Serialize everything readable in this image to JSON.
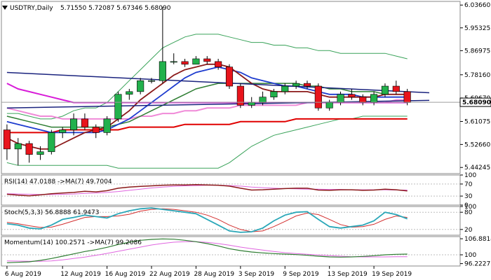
{
  "header": {
    "symbol": "USDTRY,Daily",
    "ohlc": "5.71550 5.72087 5.67346 5.68090"
  },
  "colors": {
    "bull": "#22b14c",
    "bear": "#e8141c",
    "bb_outer": "#3aa35a",
    "ma_fast": "#8b1a1a",
    "ma_mid": "#1e3ccf",
    "ma_slow_green": "#2e7d32",
    "ma_magenta": "#d81bd8",
    "ma_pink": "#f08ad8",
    "ma_red200": "#e00000",
    "trendline": "#1a237e",
    "grid": "#bdbdbd",
    "rsi": "#8b1a1a",
    "stoch_k": "#2aa7b8",
    "stoch_d": "#d32f2f",
    "momentum": "#2e7d32",
    "momentum_ma": "#e066e0",
    "price_box_bg": "#ffffff"
  },
  "icons": {
    "collapse": "triangle-down-icon"
  },
  "chart_data": [
    {
      "type": "candlestick",
      "title": "USDTRY,Daily",
      "ylim": [
        5.42,
        6.05
      ],
      "yticks": [
        "6.03660",
        "5.95325",
        "5.86975",
        "5.78160",
        "5.69670",
        "5.61075",
        "5.52660",
        "5.44245"
      ],
      "ytick_values": [
        6.0366,
        5.95325,
        5.86975,
        5.7816,
        5.6967,
        5.61075,
        5.5266,
        5.44245
      ],
      "current_price_label": "5.68090",
      "current_price": 5.6809,
      "xtick_labels": [
        "6 Aug 2019",
        "12 Aug 2019",
        "16 Aug 2019",
        "22 Aug 2019",
        "28 Aug 2019",
        "3 Sep 2019",
        "9 Sep 2019",
        "13 Sep 2019",
        "19 Sep 2019"
      ],
      "xtick_index": [
        0,
        5,
        9,
        13,
        17,
        21,
        25,
        29,
        33
      ],
      "candles": [
        {
          "o": 5.58,
          "h": 5.6,
          "l": 5.47,
          "c": 5.51
        },
        {
          "o": 5.51,
          "h": 5.55,
          "l": 5.45,
          "c": 5.53
        },
        {
          "o": 5.53,
          "h": 5.54,
          "l": 5.46,
          "c": 5.49
        },
        {
          "o": 5.49,
          "h": 5.52,
          "l": 5.47,
          "c": 5.5
        },
        {
          "o": 5.5,
          "h": 5.58,
          "l": 5.49,
          "c": 5.57
        },
        {
          "o": 5.57,
          "h": 5.59,
          "l": 5.55,
          "c": 5.58
        },
        {
          "o": 5.58,
          "h": 5.64,
          "l": 5.56,
          "c": 5.62
        },
        {
          "o": 5.62,
          "h": 5.64,
          "l": 5.58,
          "c": 5.59
        },
        {
          "o": 5.59,
          "h": 5.6,
          "l": 5.55,
          "c": 5.57
        },
        {
          "o": 5.57,
          "h": 5.63,
          "l": 5.56,
          "c": 5.62
        },
        {
          "o": 5.62,
          "h": 5.72,
          "l": 5.61,
          "c": 5.71
        },
        {
          "o": 5.71,
          "h": 5.73,
          "l": 5.69,
          "c": 5.72
        },
        {
          "o": 5.72,
          "h": 5.77,
          "l": 5.71,
          "c": 5.76
        },
        {
          "o": 5.76,
          "h": 5.77,
          "l": 5.75,
          "c": 5.76
        },
        {
          "o": 5.76,
          "h": 6.03,
          "l": 5.75,
          "c": 5.83
        },
        {
          "o": 5.83,
          "h": 5.86,
          "l": 5.82,
          "c": 5.83
        },
        {
          "o": 5.83,
          "h": 5.84,
          "l": 5.81,
          "c": 5.82
        },
        {
          "o": 5.82,
          "h": 5.85,
          "l": 5.82,
          "c": 5.84
        },
        {
          "o": 5.84,
          "h": 5.85,
          "l": 5.82,
          "c": 5.83
        },
        {
          "o": 5.83,
          "h": 5.84,
          "l": 5.8,
          "c": 5.81
        },
        {
          "o": 5.81,
          "h": 5.82,
          "l": 5.73,
          "c": 5.74
        },
        {
          "o": 5.74,
          "h": 5.75,
          "l": 5.66,
          "c": 5.67
        },
        {
          "o": 5.67,
          "h": 5.7,
          "l": 5.66,
          "c": 5.68
        },
        {
          "o": 5.68,
          "h": 5.72,
          "l": 5.67,
          "c": 5.7
        },
        {
          "o": 5.7,
          "h": 5.73,
          "l": 5.69,
          "c": 5.72
        },
        {
          "o": 5.72,
          "h": 5.75,
          "l": 5.71,
          "c": 5.74
        },
        {
          "o": 5.74,
          "h": 5.76,
          "l": 5.73,
          "c": 5.75
        },
        {
          "o": 5.75,
          "h": 5.76,
          "l": 5.73,
          "c": 5.74
        },
        {
          "o": 5.74,
          "h": 5.75,
          "l": 5.65,
          "c": 5.66
        },
        {
          "o": 5.66,
          "h": 5.69,
          "l": 5.65,
          "c": 5.68
        },
        {
          "o": 5.68,
          "h": 5.72,
          "l": 5.67,
          "c": 5.71
        },
        {
          "o": 5.71,
          "h": 5.73,
          "l": 5.69,
          "c": 5.7
        },
        {
          "o": 5.7,
          "h": 5.71,
          "l": 5.67,
          "c": 5.68
        },
        {
          "o": 5.68,
          "h": 5.72,
          "l": 5.67,
          "c": 5.71
        },
        {
          "o": 5.71,
          "h": 5.75,
          "l": 5.7,
          "c": 5.74
        },
        {
          "o": 5.74,
          "h": 5.76,
          "l": 5.71,
          "c": 5.72
        },
        {
          "o": 5.72,
          "h": 5.73,
          "l": 5.67,
          "c": 5.68
        }
      ],
      "lines": {
        "bb_upper": [
          5.64,
          5.64,
          5.63,
          5.62,
          5.62,
          5.63,
          5.65,
          5.66,
          5.66,
          5.68,
          5.72,
          5.76,
          5.8,
          5.84,
          5.88,
          5.9,
          5.92,
          5.93,
          5.93,
          5.93,
          5.92,
          5.91,
          5.9,
          5.9,
          5.89,
          5.89,
          5.88,
          5.88,
          5.87,
          5.87,
          5.86,
          5.86,
          5.86,
          5.86,
          5.86,
          5.85,
          5.84
        ],
        "bb_lower": [
          5.46,
          5.45,
          5.45,
          5.45,
          5.45,
          5.45,
          5.45,
          5.45,
          5.45,
          5.45,
          5.44,
          5.44,
          5.44,
          5.44,
          5.44,
          5.44,
          5.44,
          5.44,
          5.44,
          5.44,
          5.46,
          5.49,
          5.52,
          5.54,
          5.56,
          5.57,
          5.58,
          5.59,
          5.6,
          5.61,
          5.62,
          5.62,
          5.63,
          5.63,
          5.63,
          5.63,
          5.63
        ],
        "ma_fast": [
          5.55,
          5.53,
          5.52,
          5.51,
          5.51,
          5.53,
          5.55,
          5.57,
          5.58,
          5.59,
          5.62,
          5.65,
          5.69,
          5.72,
          5.75,
          5.78,
          5.8,
          5.81,
          5.82,
          5.82,
          5.81,
          5.78,
          5.75,
          5.73,
          5.72,
          5.72,
          5.72,
          5.72,
          5.71,
          5.7,
          5.7,
          5.7,
          5.7,
          5.7,
          5.71,
          5.71,
          5.71
        ],
        "ma_mid": [
          5.61,
          5.6,
          5.59,
          5.58,
          5.57,
          5.57,
          5.57,
          5.57,
          5.57,
          5.58,
          5.6,
          5.62,
          5.65,
          5.68,
          5.71,
          5.74,
          5.77,
          5.79,
          5.8,
          5.81,
          5.8,
          5.79,
          5.77,
          5.76,
          5.75,
          5.74,
          5.74,
          5.73,
          5.72,
          5.71,
          5.71,
          5.71,
          5.7,
          5.7,
          5.7,
          5.7,
          5.7
        ],
        "ma_green": [
          5.63,
          5.62,
          5.61,
          5.6,
          5.59,
          5.59,
          5.59,
          5.59,
          5.59,
          5.59,
          5.6,
          5.61,
          5.63,
          5.65,
          5.67,
          5.69,
          5.71,
          5.73,
          5.74,
          5.75,
          5.75,
          5.75,
          5.75,
          5.75,
          5.75,
          5.75,
          5.75,
          5.74,
          5.74,
          5.73,
          5.73,
          5.72,
          5.72,
          5.72,
          5.71,
          5.71,
          5.71
        ],
        "ma_magenta": [
          5.75,
          5.73,
          5.72,
          5.71,
          5.7,
          5.69,
          5.68,
          5.68,
          5.68,
          5.68,
          5.68,
          5.68,
          5.68,
          5.68,
          5.68,
          5.68,
          5.68,
          5.68,
          5.68,
          5.68,
          5.68,
          5.68,
          5.68,
          5.68,
          5.68,
          5.68,
          5.68,
          5.68,
          5.68,
          5.68,
          5.68,
          5.68,
          5.68,
          5.68,
          5.68,
          5.68,
          5.68
        ],
        "ma_pink": [
          5.66,
          5.65,
          5.64,
          5.63,
          5.63,
          5.62,
          5.62,
          5.62,
          5.62,
          5.62,
          5.62,
          5.62,
          5.63,
          5.63,
          5.64,
          5.64,
          5.65,
          5.65,
          5.66,
          5.66,
          5.66,
          5.67,
          5.67,
          5.67,
          5.67,
          5.67,
          5.67,
          5.68,
          5.68,
          5.68,
          5.68,
          5.68,
          5.68,
          5.68,
          5.68,
          5.69,
          5.69
        ],
        "ma_red200": [
          5.57,
          5.57,
          5.57,
          5.57,
          5.57,
          5.58,
          5.58,
          5.58,
          5.58,
          5.58,
          5.58,
          5.59,
          5.59,
          5.59,
          5.59,
          5.59,
          5.6,
          5.6,
          5.6,
          5.6,
          5.6,
          5.61,
          5.61,
          5.61,
          5.61,
          5.61,
          5.62,
          5.62,
          5.62,
          5.62,
          5.62,
          5.62,
          5.62,
          5.62,
          5.62,
          5.62,
          5.62
        ]
      },
      "trendlines": [
        {
          "from": [
            0,
            5.79
          ],
          "to": [
            41,
            5.71
          ]
        },
        {
          "from": [
            0,
            5.66
          ],
          "to": [
            41,
            5.69
          ]
        }
      ]
    },
    {
      "type": "line",
      "title": "RSI(14) 47.0188 ->MA(7) 49.7004",
      "ylim": [
        0,
        100
      ],
      "yticks": [
        "100",
        "70",
        "30",
        "0"
      ],
      "ytick_values": [
        100,
        70,
        30,
        0
      ],
      "series": [
        {
          "values": [
            36,
            33,
            31,
            34,
            38,
            40,
            42,
            46,
            44,
            48,
            56,
            60,
            62,
            64,
            66,
            67,
            67,
            68,
            67,
            66,
            63,
            56,
            50,
            51,
            53,
            55,
            56,
            56,
            50,
            49,
            51,
            51,
            49,
            50,
            53,
            51,
            47
          ]
        },
        {
          "values": [
            38,
            37,
            36,
            35,
            35,
            36,
            37,
            39,
            40,
            42,
            45,
            49,
            53,
            57,
            60,
            62,
            64,
            65,
            66,
            66,
            65,
            63,
            60,
            58,
            56,
            55,
            54,
            53,
            53,
            52,
            52,
            51,
            51,
            51,
            51,
            50,
            50
          ]
        }
      ]
    },
    {
      "type": "line",
      "title": "Stoch(5,3,3) 56.8888 61.9473",
      "ylim": [
        0,
        100
      ],
      "yticks": [
        "100",
        "80",
        "20"
      ],
      "ytick_values": [
        100,
        80,
        20
      ],
      "series": [
        {
          "values": [
            40,
            35,
            25,
            22,
            35,
            55,
            62,
            70,
            65,
            60,
            75,
            85,
            92,
            95,
            90,
            85,
            80,
            75,
            55,
            35,
            15,
            10,
            12,
            25,
            50,
            70,
            80,
            82,
            55,
            30,
            25,
            30,
            35,
            50,
            80,
            72,
            57
          ]
        },
        {
          "values": [
            45,
            40,
            33,
            27,
            28,
            38,
            50,
            62,
            65,
            65,
            67,
            73,
            84,
            90,
            92,
            90,
            85,
            80,
            70,
            55,
            35,
            20,
            12,
            15,
            30,
            48,
            67,
            77,
            72,
            55,
            37,
            28,
            30,
            38,
            55,
            67,
            62
          ]
        }
      ]
    },
    {
      "type": "line",
      "title": "Momentum(14) 100.2571 ->MA(7) 99.2086",
      "ylim": [
        95.2,
        107.8
      ],
      "yticks": [
        "106.8814",
        "100",
        "96.2227"
      ],
      "ytick_values": [
        106.8814,
        100,
        96.2227
      ],
      "series": [
        {
          "values": [
            96.6,
            96.8,
            97.0,
            97.6,
            98.4,
            99.4,
            100.4,
            101.4,
            102.2,
            103.2,
            104.4,
            105.4,
            106.2,
            106.6,
            106.8,
            106.7,
            106.2,
            105.6,
            104.8,
            103.8,
            102.6,
            101.8,
            101.2,
            100.8,
            100.5,
            100.3,
            100.1,
            99.8,
            99.4,
            99.1,
            99.0,
            99.1,
            99.3,
            99.6,
            100.0,
            100.2,
            100.3
          ]
        },
        {
          "values": [
            97.4,
            97.3,
            97.2,
            97.2,
            97.4,
            97.8,
            98.4,
            99.0,
            99.8,
            100.6,
            101.5,
            102.4,
            103.3,
            104.2,
            104.9,
            105.4,
            105.6,
            105.6,
            105.3,
            104.8,
            104.1,
            103.3,
            102.6,
            102.0,
            101.4,
            100.9,
            100.5,
            100.2,
            99.9,
            99.6,
            99.4,
            99.2,
            99.1,
            99.1,
            99.1,
            99.2,
            99.2
          ]
        }
      ]
    }
  ]
}
